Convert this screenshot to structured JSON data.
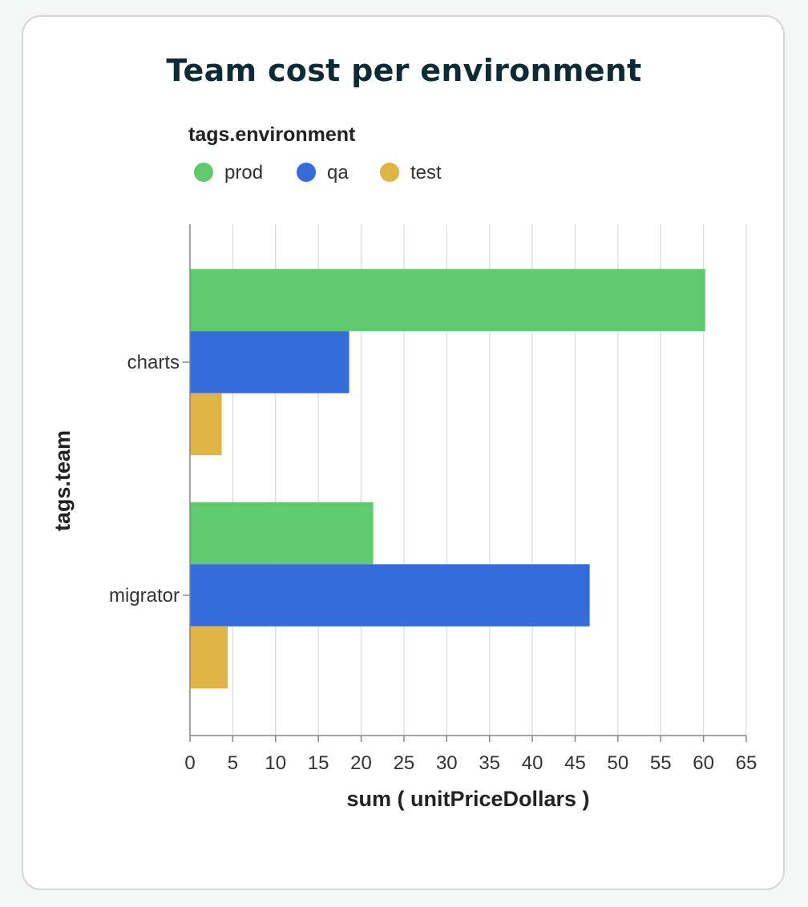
{
  "chart_data": {
    "type": "bar",
    "orientation": "horizontal",
    "title": "Team cost per environment",
    "xlabel": "sum ( unitPriceDollars )",
    "ylabel": "tags.team",
    "legend_title": "tags.environment",
    "legend_position": "top-left",
    "categories": [
      "charts",
      "migrator"
    ],
    "xlim": [
      0,
      65
    ],
    "xticks": [
      "0",
      "5",
      "10",
      "15",
      "20",
      "25",
      "30",
      "35",
      "40",
      "45",
      "50",
      "55",
      "60",
      "65"
    ],
    "grid": true,
    "series": [
      {
        "name": "prod",
        "color": "#5fc96e",
        "values": [
          60.2,
          21.4
        ]
      },
      {
        "name": "qa",
        "color": "#346ddb",
        "values": [
          18.6,
          46.7
        ]
      },
      {
        "name": "test",
        "color": "#dfb443",
        "values": [
          3.7,
          4.4
        ]
      }
    ]
  }
}
